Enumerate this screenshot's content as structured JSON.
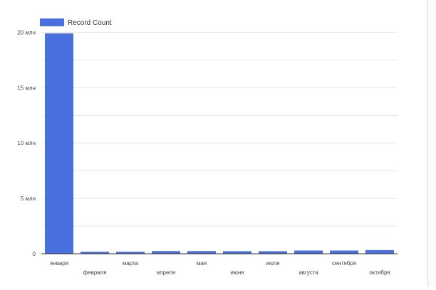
{
  "chart_data": {
    "type": "bar",
    "title": "",
    "xlabel": "",
    "ylabel": "",
    "categories": [
      "января",
      "февраля",
      "марта",
      "апреля",
      "мая",
      "июня",
      "июля",
      "августа",
      "сентября",
      "октября"
    ],
    "series": [
      {
        "name": "Record Count",
        "color": "#4a70e0",
        "values": [
          19900000,
          180000,
          180000,
          240000,
          240000,
          230000,
          230000,
          290000,
          290000,
          330000
        ]
      }
    ],
    "ylim": [
      0,
      21500000
    ],
    "yticks": [
      {
        "value": 0,
        "label": "0"
      },
      {
        "value": 5000000,
        "label": "5 млн"
      },
      {
        "value": 10000000,
        "label": "10 млн"
      },
      {
        "value": 15000000,
        "label": "15 млн"
      },
      {
        "value": 20000000,
        "label": "20 млн"
      }
    ],
    "grid": true,
    "legend_position": "top-left"
  }
}
